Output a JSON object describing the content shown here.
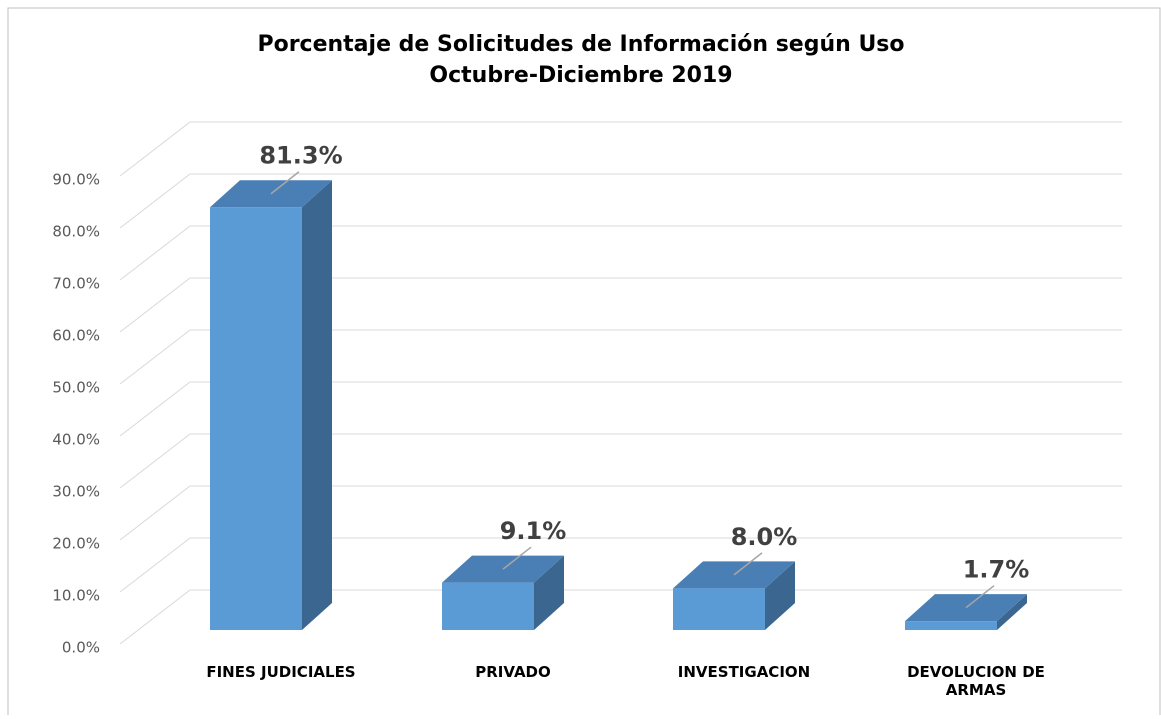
{
  "chart_data": {
    "type": "bar3d",
    "title": "Porcentaje de Solicitudes de Información según Uso",
    "subtitle": "Octubre-Diciembre 2019",
    "categories": [
      "FINES JUDICIALES",
      "PRIVADO",
      "INVESTIGACION",
      "DEVOLUCION DE ARMAS"
    ],
    "values": [
      81.3,
      9.1,
      8.0,
      1.7
    ],
    "value_labels": [
      "81.3%",
      "9.1%",
      "8.0%",
      "1.7%"
    ],
    "color": "#5b9bd5",
    "ylim": [
      0,
      90
    ],
    "yticks": [
      {
        "value": 0,
        "label": "0.0%"
      },
      {
        "value": 10,
        "label": "10.0%"
      },
      {
        "value": 20,
        "label": "20.0%"
      },
      {
        "value": 30,
        "label": "30.0%"
      },
      {
        "value": 40,
        "label": "40.0%"
      },
      {
        "value": 50,
        "label": "50.0%"
      },
      {
        "value": 60,
        "label": "60.0%"
      },
      {
        "value": 70,
        "label": "70.0%"
      },
      {
        "value": 80,
        "label": "80.0%"
      },
      {
        "value": 90,
        "label": "90.0%"
      }
    ],
    "grid": true
  }
}
